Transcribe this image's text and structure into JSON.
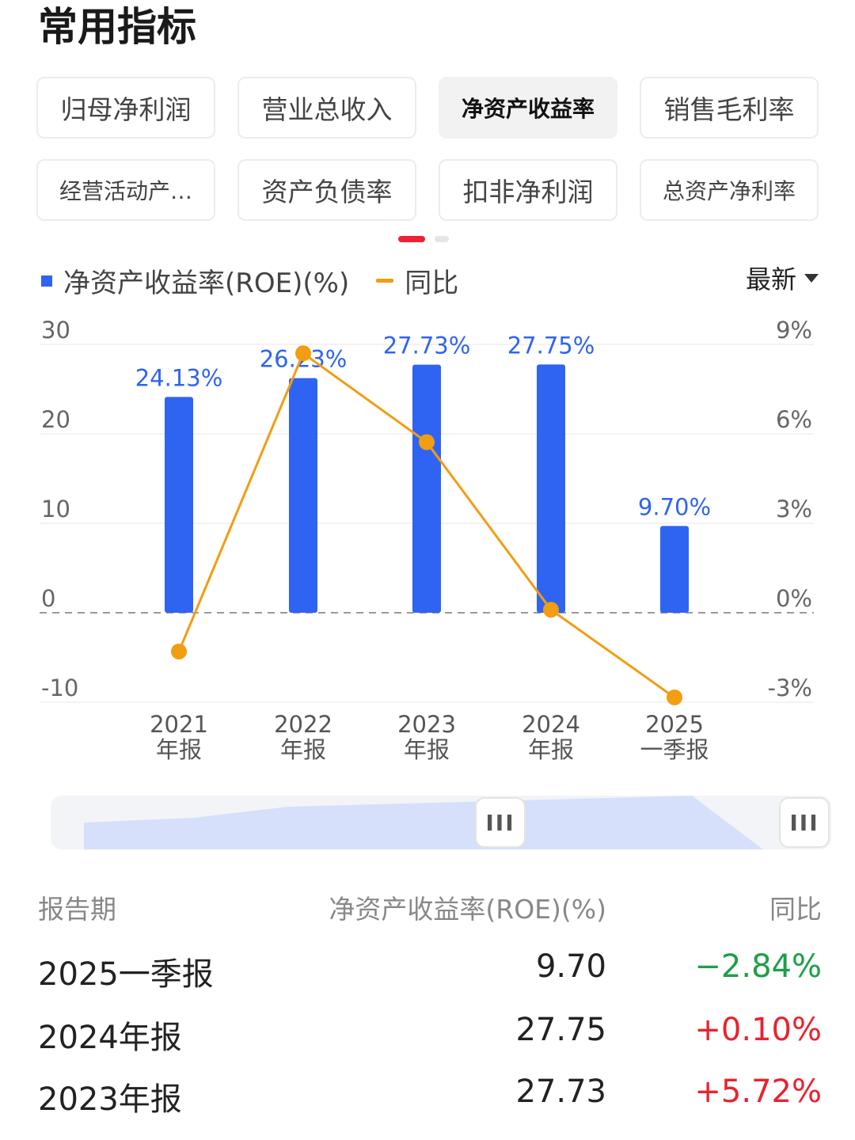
{
  "title": "常用指标",
  "tabs": [
    {
      "label": "归母净利润"
    },
    {
      "label": "营业总收入"
    },
    {
      "label": "净资产收益率",
      "active": true
    },
    {
      "label": "销售毛利率"
    },
    {
      "label": "经营活动产…"
    },
    {
      "label": "资产负债率"
    },
    {
      "label": "扣非净利润"
    },
    {
      "label": "总资产净利率"
    }
  ],
  "legend": {
    "bar_label": "净资产收益率(ROE)(%)",
    "line_label": "同比"
  },
  "period_selector": {
    "label": "最新"
  },
  "slider": {
    "grip": "III"
  },
  "chart_data": {
    "type": "bar",
    "categories": [
      [
        "2021",
        "年报"
      ],
      [
        "2022",
        "年报"
      ],
      [
        "2023",
        "年报"
      ],
      [
        "2024",
        "年报"
      ],
      [
        "2025",
        "一季报"
      ]
    ],
    "series": [
      {
        "name": "净资产收益率(ROE)(%)",
        "type": "bar",
        "axis": "left",
        "values": [
          24.13,
          26.23,
          27.73,
          27.75,
          9.7
        ],
        "labels": [
          "24.13%",
          "26.23%",
          "27.73%",
          "27.75%",
          "9.70%"
        ],
        "color": "#2f64f2"
      },
      {
        "name": "同比",
        "type": "line",
        "axis": "right",
        "values": [
          -1.3,
          8.7,
          5.72,
          0.1,
          -2.84
        ],
        "color": "#f29d12"
      }
    ],
    "y_left": {
      "ticks": [
        "30",
        "20",
        "10",
        "0",
        "-10"
      ],
      "range": [
        -10,
        30
      ]
    },
    "y_right": {
      "ticks": [
        "9%",
        "6%",
        "3%",
        "0%",
        "-3%"
      ],
      "range": [
        -3,
        9
      ]
    },
    "grid": true
  },
  "table": {
    "headers": [
      "报告期",
      "净资产收益率(ROE)(%)",
      "同比"
    ],
    "rows": [
      {
        "period": "2025一季报",
        "value": "9.70",
        "yoy": "−2.84%",
        "trend": "neg"
      },
      {
        "period": "2024年报",
        "value": "27.75",
        "yoy": "+0.10%",
        "trend": "pos"
      },
      {
        "period": "2023年报",
        "value": "27.73",
        "yoy": "+5.72%",
        "trend": "pos"
      }
    ]
  },
  "colors": {
    "accent": "#ee2233",
    "bar": "#2f64f2",
    "line": "#f29d12",
    "positive": "#e8232e",
    "negative": "#1f9e48"
  }
}
